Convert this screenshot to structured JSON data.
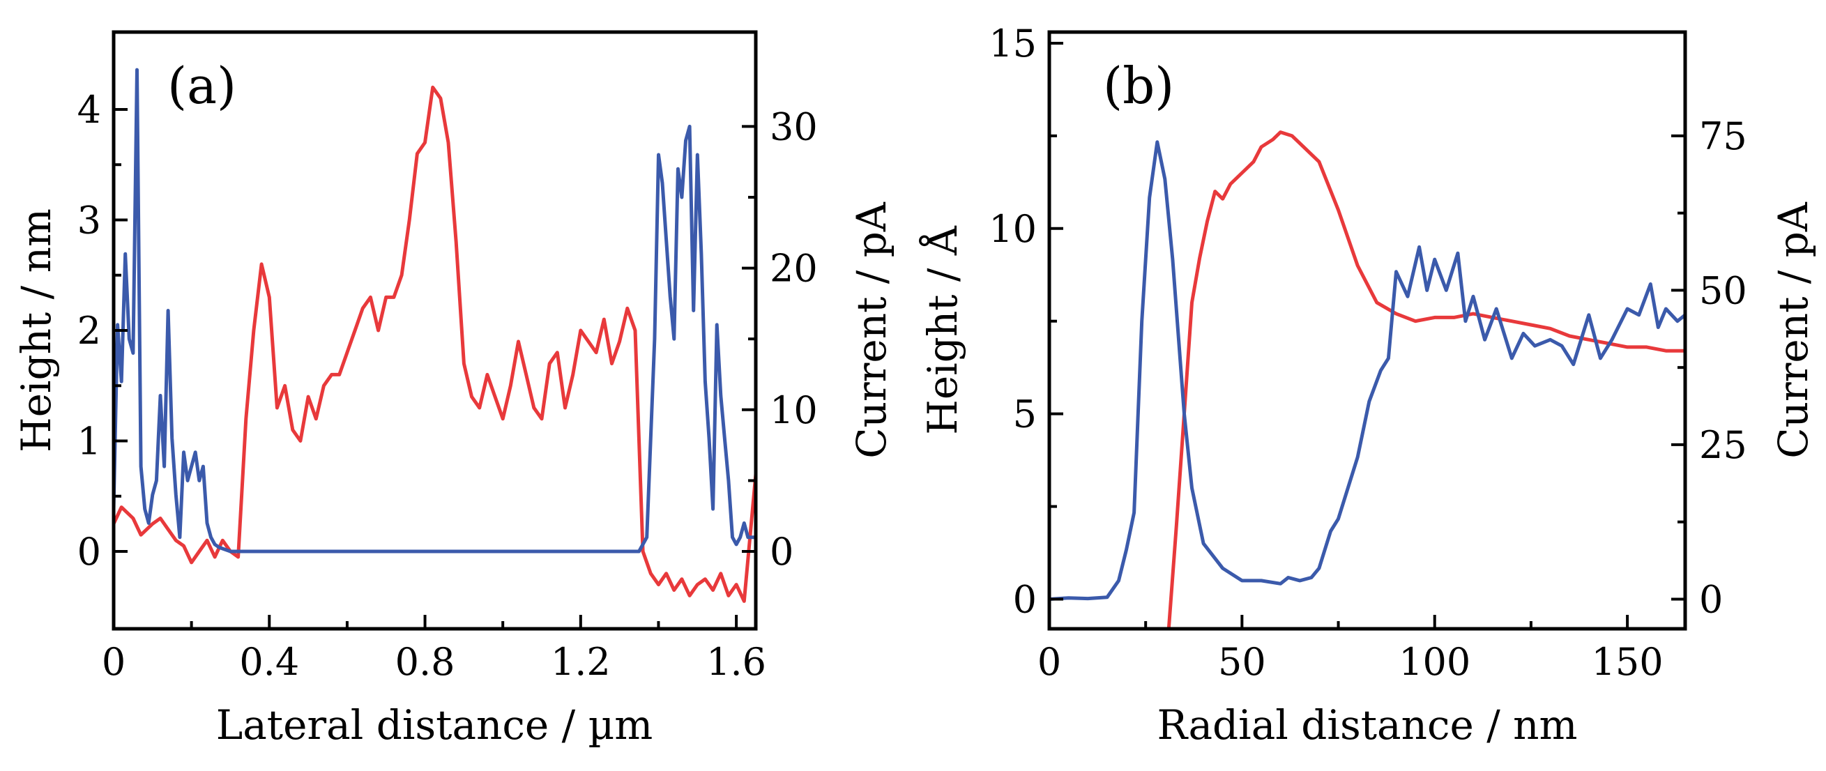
{
  "chart_data": [
    {
      "type": "line",
      "panel_label": "(a)",
      "xlabel": "Lateral distance / µm",
      "ylabel_left": "Height / nm",
      "ylabel_right": "Current / pA",
      "xlim": [
        0,
        1.65
      ],
      "ylim_left": [
        -0.7,
        4.7
      ],
      "ylim_right": [
        -5.46,
        36.66
      ],
      "x_ticks": [
        {
          "value": 0,
          "label": "0"
        },
        {
          "value": 0.4,
          "label": "0.4"
        },
        {
          "value": 0.8,
          "label": "0.8"
        },
        {
          "value": 1.2,
          "label": "1.2"
        },
        {
          "value": 1.6,
          "label": "1.6"
        }
      ],
      "y_left_ticks": [
        {
          "value": 0,
          "label": "0"
        },
        {
          "value": 1,
          "label": "1"
        },
        {
          "value": 2,
          "label": "2"
        },
        {
          "value": 3,
          "label": "3"
        },
        {
          "value": 4,
          "label": "4"
        }
      ],
      "y_right_ticks": [
        {
          "value": 0,
          "label": "0"
        },
        {
          "value": 10,
          "label": "10"
        },
        {
          "value": 20,
          "label": "20"
        },
        {
          "value": 30,
          "label": "30"
        }
      ],
      "series": [
        {
          "name": "Height",
          "axis": "left",
          "color": "#e8393b",
          "x": [
            0,
            0.02,
            0.05,
            0.07,
            0.1,
            0.12,
            0.14,
            0.16,
            0.18,
            0.2,
            0.22,
            0.24,
            0.26,
            0.28,
            0.3,
            0.32,
            0.34,
            0.36,
            0.38,
            0.4,
            0.42,
            0.44,
            0.46,
            0.48,
            0.5,
            0.52,
            0.54,
            0.56,
            0.58,
            0.6,
            0.62,
            0.64,
            0.66,
            0.68,
            0.7,
            0.72,
            0.74,
            0.76,
            0.78,
            0.8,
            0.82,
            0.84,
            0.86,
            0.88,
            0.9,
            0.92,
            0.94,
            0.96,
            0.98,
            1.0,
            1.02,
            1.04,
            1.06,
            1.08,
            1.1,
            1.12,
            1.14,
            1.16,
            1.18,
            1.2,
            1.22,
            1.24,
            1.26,
            1.28,
            1.3,
            1.32,
            1.34,
            1.36,
            1.38,
            1.4,
            1.42,
            1.44,
            1.46,
            1.48,
            1.5,
            1.52,
            1.54,
            1.56,
            1.58,
            1.6,
            1.62,
            1.65
          ],
          "y": [
            0.25,
            0.4,
            0.3,
            0.15,
            0.25,
            0.3,
            0.2,
            0.1,
            0.05,
            -0.1,
            0.0,
            0.1,
            -0.05,
            0.1,
            0.0,
            -0.05,
            1.2,
            2.0,
            2.6,
            2.3,
            1.3,
            1.5,
            1.1,
            1.0,
            1.4,
            1.2,
            1.5,
            1.6,
            1.6,
            1.8,
            2.0,
            2.2,
            2.3,
            2.0,
            2.3,
            2.3,
            2.5,
            3.0,
            3.6,
            3.7,
            4.2,
            4.1,
            3.7,
            2.8,
            1.7,
            1.4,
            1.3,
            1.6,
            1.4,
            1.2,
            1.5,
            1.9,
            1.6,
            1.3,
            1.2,
            1.7,
            1.8,
            1.3,
            1.6,
            2.0,
            1.9,
            1.8,
            2.1,
            1.7,
            1.9,
            2.2,
            2.0,
            0.0,
            -0.2,
            -0.3,
            -0.2,
            -0.35,
            -0.25,
            -0.4,
            -0.3,
            -0.25,
            -0.35,
            -0.2,
            -0.4,
            -0.3,
            -0.45,
            0.7
          ]
        },
        {
          "name": "Current",
          "axis": "right",
          "color": "#3b5aab",
          "x": [
            0,
            0.01,
            0.02,
            0.03,
            0.04,
            0.05,
            0.06,
            0.07,
            0.08,
            0.09,
            0.1,
            0.11,
            0.12,
            0.13,
            0.14,
            0.15,
            0.16,
            0.17,
            0.18,
            0.19,
            0.2,
            0.21,
            0.22,
            0.23,
            0.24,
            0.25,
            0.26,
            0.27,
            0.28,
            0.29,
            0.3,
            0.31,
            0.32,
            0.33,
            0.35,
            0.4,
            0.5,
            0.6,
            0.7,
            0.8,
            0.9,
            1.0,
            1.1,
            1.2,
            1.3,
            1.35,
            1.37,
            1.39,
            1.4,
            1.41,
            1.42,
            1.43,
            1.44,
            1.45,
            1.46,
            1.47,
            1.48,
            1.49,
            1.5,
            1.51,
            1.52,
            1.53,
            1.54,
            1.55,
            1.56,
            1.57,
            1.58,
            1.59,
            1.6,
            1.61,
            1.62,
            1.63,
            1.65
          ],
          "y": [
            3,
            16,
            12,
            21,
            15,
            14,
            34,
            6,
            3,
            2,
            4,
            5,
            11,
            6,
            17,
            8,
            4,
            1,
            7,
            5,
            6,
            7,
            5,
            6,
            2,
            1,
            0.5,
            0.3,
            0.2,
            0.1,
            0,
            0,
            0,
            0,
            0,
            0,
            0,
            0,
            0,
            0,
            0,
            0,
            0,
            0,
            0,
            0,
            1,
            15,
            28,
            26,
            22,
            18,
            15,
            27,
            25,
            29,
            30,
            17,
            28,
            21,
            12,
            8,
            3,
            16,
            11,
            8,
            5,
            1,
            0.5,
            1,
            2,
            1,
            1
          ]
        }
      ]
    },
    {
      "type": "line",
      "panel_label": "(b)",
      "xlabel": "Radial distance / nm",
      "ylabel_left": "Height / Å",
      "ylabel_right": "Current / pA",
      "xlim": [
        0,
        165
      ],
      "ylim_left": [
        -0.8,
        15.3
      ],
      "ylim_right": [
        -4.8,
        91.8
      ],
      "x_ticks": [
        {
          "value": 0,
          "label": "0"
        },
        {
          "value": 50,
          "label": "50"
        },
        {
          "value": 100,
          "label": "100"
        },
        {
          "value": 150,
          "label": "150"
        }
      ],
      "y_left_ticks": [
        {
          "value": 0,
          "label": "0"
        },
        {
          "value": 5,
          "label": "5"
        },
        {
          "value": 10,
          "label": "10"
        },
        {
          "value": 15,
          "label": "15"
        }
      ],
      "y_right_ticks": [
        {
          "value": 0,
          "label": "0"
        },
        {
          "value": 25,
          "label": "25"
        },
        {
          "value": 50,
          "label": "50"
        },
        {
          "value": 75,
          "label": "75"
        }
      ],
      "series": [
        {
          "name": "Height",
          "axis": "left",
          "color": "#e8393b",
          "x": [
            31,
            33,
            35,
            37,
            39,
            41,
            43,
            45,
            47,
            50,
            53,
            55,
            58,
            60,
            63,
            66,
            70,
            75,
            80,
            85,
            90,
            95,
            100,
            105,
            110,
            115,
            120,
            125,
            130,
            135,
            140,
            145,
            150,
            155,
            160,
            165
          ],
          "y": [
            -0.8,
            2.0,
            5.0,
            8.0,
            9.2,
            10.2,
            11.0,
            10.8,
            11.2,
            11.5,
            11.8,
            12.2,
            12.4,
            12.6,
            12.5,
            12.2,
            11.8,
            10.5,
            9.0,
            8.0,
            7.7,
            7.5,
            7.6,
            7.6,
            7.7,
            7.6,
            7.5,
            7.4,
            7.3,
            7.1,
            7.0,
            6.9,
            6.8,
            6.8,
            6.7,
            6.7
          ]
        },
        {
          "name": "Current",
          "axis": "right",
          "color": "#3b5aab",
          "x": [
            0,
            5,
            10,
            15,
            18,
            20,
            22,
            24,
            26,
            28,
            30,
            32,
            35,
            37,
            40,
            45,
            50,
            55,
            60,
            62,
            65,
            68,
            70,
            73,
            75,
            78,
            80,
            83,
            86,
            88,
            90,
            93,
            96,
            98,
            100,
            103,
            106,
            108,
            110,
            113,
            116,
            120,
            123,
            126,
            130,
            133,
            136,
            140,
            143,
            146,
            150,
            153,
            156,
            158,
            160,
            163,
            165
          ],
          "y": [
            0,
            0.2,
            0.1,
            0.3,
            3,
            8,
            14,
            45,
            65,
            74,
            68,
            55,
            30,
            18,
            9,
            5,
            3,
            3,
            2.5,
            3.5,
            3.0,
            3.5,
            5,
            11,
            13,
            19,
            23,
            32,
            37,
            39,
            53,
            49,
            57,
            50,
            55,
            50,
            56,
            45,
            49,
            42,
            47,
            39,
            43,
            41,
            42,
            41,
            38,
            46,
            39,
            42,
            47,
            46,
            51,
            44,
            47,
            45,
            46
          ]
        }
      ]
    }
  ]
}
